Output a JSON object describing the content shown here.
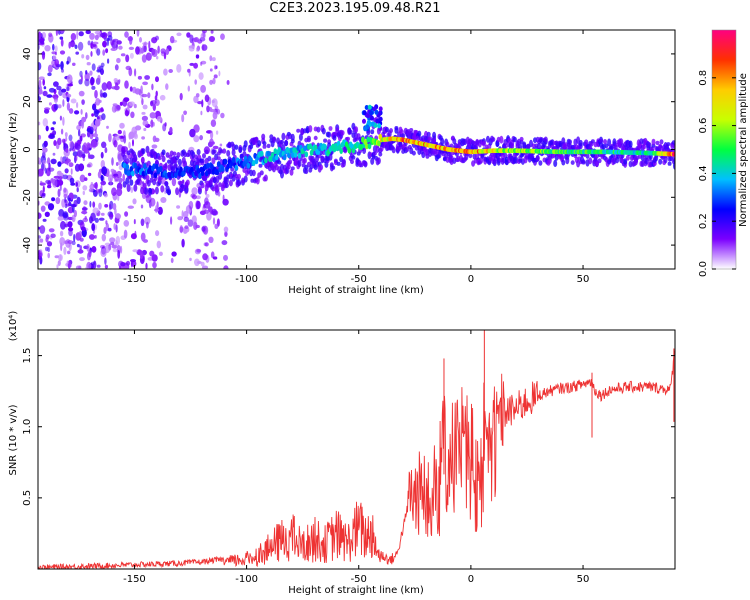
{
  "title": "C2E3.2023.195.09.48.R21",
  "chart_data": [
    {
      "type": "heatmap",
      "xlabel": "Height of straight line (km)",
      "ylabel": "Frequency (Hz)",
      "xlim": [
        -193,
        91
      ],
      "ylim": [
        -50,
        50
      ],
      "xticks": [
        -150,
        -100,
        -50,
        0,
        50
      ],
      "xtick_labels": [
        "-150",
        "-100",
        "-50",
        "0",
        "50"
      ],
      "yticks": [
        -40,
        -20,
        0,
        20,
        40
      ],
      "ytick_labels": [
        "-40",
        "-20",
        "0",
        "20",
        "40"
      ],
      "colorbar": {
        "label": "Normalized spectral amplitude",
        "range": [
          0,
          1
        ],
        "ticks": [
          0.0,
          0.2,
          0.4,
          0.6,
          0.8
        ],
        "tick_labels": [
          "0.0",
          "0.2",
          "0.4",
          "0.6",
          "0.8"
        ],
        "colors": [
          "#ffffff",
          "#7b00ff",
          "#0000ff",
          "#00c0ff",
          "#00ff40",
          "#c8ff00",
          "#ffcc00",
          "#ff3000",
          "#ff0080"
        ]
      },
      "ridge": {
        "x": [
          -155,
          -140,
          -125,
          -110,
          -100,
          -90,
          -80,
          -70,
          -60,
          -50,
          -45,
          -40,
          -35,
          -30,
          -20,
          -10,
          0,
          10,
          20,
          40,
          60,
          80,
          91
        ],
        "y": [
          -8,
          -9,
          -10,
          -7,
          -5,
          -3,
          -1,
          0,
          0.5,
          2,
          3,
          4,
          4.5,
          4,
          2,
          0,
          -1,
          -0.5,
          -0.5,
          -1,
          -1,
          -1.5,
          -2
        ],
        "amplitude": [
          0.35,
          0.3,
          0.28,
          0.3,
          0.35,
          0.4,
          0.4,
          0.42,
          0.45,
          0.5,
          0.6,
          0.7,
          0.8,
          0.85,
          0.8,
          0.8,
          0.85,
          0.7,
          0.65,
          0.55,
          0.5,
          0.45,
          0.95
        ]
      },
      "grid": false
    },
    {
      "type": "line",
      "xlabel": "Height of straight line (km)",
      "ylabel": "SNR (10 * v/v)",
      "multiplier_label": "(x10⁴)",
      "xlim": [
        -193,
        91
      ],
      "ylim": [
        0,
        1.68
      ],
      "xticks": [
        -150,
        -100,
        -50,
        0,
        50
      ],
      "xtick_labels": [
        "-150",
        "-100",
        "-50",
        "0",
        "50"
      ],
      "yticks": [
        0.5,
        1.0,
        1.5
      ],
      "ytick_labels": [
        "0.5",
        "1.0",
        "1.5"
      ],
      "series": [
        {
          "color": "#ee3333",
          "x": [
            -193,
            -170,
            -150,
            -130,
            -120,
            -110,
            -100,
            -95,
            -90,
            -85,
            -80,
            -75,
            -70,
            -65,
            -60,
            -55,
            -50,
            -47,
            -44,
            -42,
            -40,
            -36,
            -33,
            -30,
            -27,
            -25,
            -22,
            -20,
            -17,
            -15,
            -12,
            -10,
            -7,
            -5,
            -3,
            0,
            3,
            6,
            8,
            10,
            15,
            20,
            25,
            30,
            35,
            40,
            45,
            50,
            54,
            55,
            58,
            62,
            70,
            80,
            89,
            91
          ],
          "y": [
            0.01,
            0.02,
            0.03,
            0.04,
            0.05,
            0.07,
            0.1,
            0.14,
            0.2,
            0.28,
            0.33,
            0.22,
            0.3,
            0.25,
            0.35,
            0.26,
            0.42,
            0.32,
            0.38,
            0.2,
            0.1,
            0.06,
            0.1,
            0.3,
            0.52,
            0.5,
            0.55,
            0.5,
            0.75,
            0.65,
            0.95,
            0.7,
            1.05,
            0.85,
            1.15,
            1.0,
            0.6,
            1.2,
            1.0,
            1.05,
            1.1,
            1.12,
            1.18,
            1.22,
            1.25,
            1.27,
            1.28,
            1.3,
            1.32,
            1.26,
            1.22,
            1.26,
            1.28,
            1.28,
            1.26,
            1.55
          ]
        }
      ],
      "grid": false
    }
  ]
}
